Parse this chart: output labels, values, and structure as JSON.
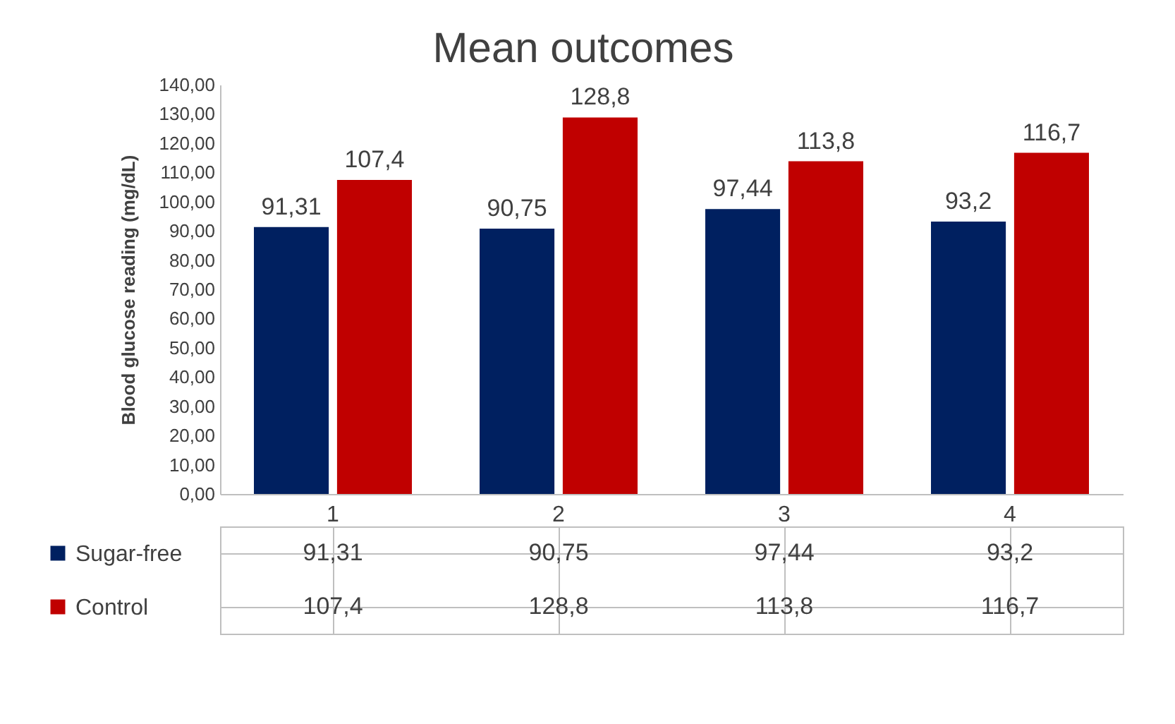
{
  "chart_data": {
    "type": "bar",
    "title": "Mean outcomes",
    "ylabel": "Blood glucose reading (mg/dL)",
    "categories": [
      "1",
      "2",
      "3",
      "4"
    ],
    "series": [
      {
        "name": "Sugar-free",
        "color": "#002060",
        "values": [
          91.31,
          90.75,
          97.44,
          93.2
        ],
        "value_labels": [
          "91,31",
          "90,75",
          "97,44",
          "93,2"
        ]
      },
      {
        "name": "Control",
        "color": "#c00000",
        "values": [
          107.4,
          128.8,
          113.8,
          116.7
        ],
        "value_labels": [
          "107,4",
          "128,8",
          "113,8",
          "116,7"
        ]
      }
    ],
    "ylim": [
      0,
      140
    ],
    "yticks": [
      {
        "value": 0,
        "label": "0,00"
      },
      {
        "value": 10,
        "label": "10,00"
      },
      {
        "value": 20,
        "label": "20,00"
      },
      {
        "value": 30,
        "label": "30,00"
      },
      {
        "value": 40,
        "label": "40,00"
      },
      {
        "value": 50,
        "label": "50,00"
      },
      {
        "value": 60,
        "label": "60,00"
      },
      {
        "value": 70,
        "label": "70,00"
      },
      {
        "value": 80,
        "label": "80,00"
      },
      {
        "value": 90,
        "label": "90,00"
      },
      {
        "value": 100,
        "label": "100,00"
      },
      {
        "value": 110,
        "label": "110,00"
      },
      {
        "value": 120,
        "label": "120,00"
      },
      {
        "value": 130,
        "label": "130,00"
      },
      {
        "value": 140,
        "label": "140,00"
      }
    ],
    "grid": false,
    "legend": "bottom"
  }
}
